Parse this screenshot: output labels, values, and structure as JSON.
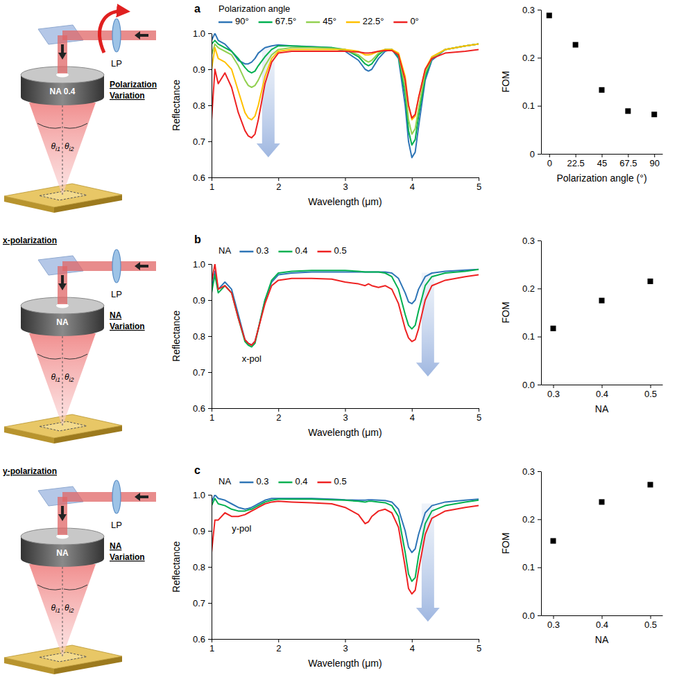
{
  "chart_data": [
    {
      "type": "line",
      "title": "a",
      "legend_title": "Polarization angle",
      "legend": "top",
      "grid": false,
      "x_label": "Wavelength (μm)",
      "y_label": "Reflectance",
      "xlim": [
        1,
        5
      ],
      "xticks": [
        1,
        2,
        3,
        4,
        5
      ],
      "ylim": [
        0.6,
        1
      ],
      "yticks": [
        0.6,
        0.7,
        0.8,
        0.9,
        {
          "value": 1,
          "label": "1.0"
        }
      ],
      "x": [
        1.0,
        1.05,
        1.1,
        1.2,
        1.3,
        1.4,
        1.5,
        1.55,
        1.6,
        1.65,
        1.7,
        1.8,
        1.9,
        2.0,
        2.2,
        2.5,
        2.8,
        3.0,
        3.2,
        3.3,
        3.35,
        3.4,
        3.5,
        3.6,
        3.7,
        3.8,
        3.9,
        3.95,
        4.0,
        4.05,
        4.1,
        4.2,
        4.3,
        4.5,
        4.8,
        5.0
      ],
      "series": [
        {
          "name": "90°",
          "color": "#2e75b6",
          "values": [
            0.98,
            1.0,
            0.98,
            0.97,
            0.95,
            0.925,
            0.915,
            0.915,
            0.92,
            0.93,
            0.945,
            0.96,
            0.965,
            0.968,
            0.965,
            0.963,
            0.96,
            0.95,
            0.925,
            0.9,
            0.895,
            0.9,
            0.93,
            0.95,
            0.955,
            0.93,
            0.8,
            0.7,
            0.655,
            0.67,
            0.74,
            0.87,
            0.925,
            0.955,
            0.965,
            0.97
          ]
        },
        {
          "name": "67.5°",
          "color": "#00b050",
          "values": [
            0.97,
            0.98,
            0.97,
            0.96,
            0.95,
            0.93,
            0.905,
            0.895,
            0.89,
            0.895,
            0.91,
            0.935,
            0.955,
            0.965,
            0.965,
            0.962,
            0.96,
            0.955,
            0.935,
            0.915,
            0.91,
            0.915,
            0.94,
            0.955,
            0.955,
            0.935,
            0.83,
            0.73,
            0.69,
            0.705,
            0.77,
            0.88,
            0.93,
            0.955,
            0.965,
            0.97
          ]
        },
        {
          "name": "45°",
          "color": "#92d050",
          "values": [
            0.94,
            0.97,
            0.96,
            0.95,
            0.94,
            0.91,
            0.87,
            0.855,
            0.85,
            0.855,
            0.87,
            0.91,
            0.94,
            0.955,
            0.96,
            0.96,
            0.958,
            0.955,
            0.94,
            0.925,
            0.92,
            0.925,
            0.945,
            0.955,
            0.955,
            0.94,
            0.85,
            0.76,
            0.72,
            0.735,
            0.79,
            0.89,
            0.93,
            0.955,
            0.965,
            0.97
          ]
        },
        {
          "name": "22.5°",
          "color": "#ffc000",
          "values": [
            0.9,
            0.96,
            0.93,
            0.92,
            0.9,
            0.84,
            0.78,
            0.765,
            0.76,
            0.77,
            0.8,
            0.88,
            0.93,
            0.95,
            0.955,
            0.955,
            0.955,
            0.955,
            0.95,
            0.94,
            0.94,
            0.942,
            0.95,
            0.955,
            0.955,
            0.945,
            0.88,
            0.8,
            0.76,
            0.77,
            0.82,
            0.9,
            0.935,
            0.955,
            0.965,
            0.97
          ]
        },
        {
          "name": "0°",
          "color": "#ee2222",
          "values": [
            0.76,
            0.9,
            0.86,
            0.89,
            0.85,
            0.78,
            0.73,
            0.715,
            0.71,
            0.72,
            0.76,
            0.86,
            0.92,
            0.945,
            0.95,
            0.95,
            0.95,
            0.95,
            0.948,
            0.945,
            0.945,
            0.946,
            0.95,
            0.952,
            0.952,
            0.94,
            0.87,
            0.8,
            0.765,
            0.775,
            0.82,
            0.9,
            0.93,
            0.945,
            0.95,
            0.955
          ]
        }
      ]
    },
    {
      "type": "scatter",
      "grid": false,
      "marker": "square",
      "color": "#000000",
      "x_label": "Polarization angle (°)",
      "y_label": "FOM",
      "xlim": [
        -7,
        97
      ],
      "xticks": [
        0,
        22.5,
        45,
        67.5,
        90
      ],
      "ylim": [
        0,
        0.3
      ],
      "yticks": [
        0,
        0.1,
        0.2,
        0.3
      ],
      "x": [
        0,
        22.5,
        45,
        67.5,
        90
      ],
      "values": [
        0.288,
        0.227,
        0.133,
        0.089,
        0.082
      ]
    },
    {
      "type": "line",
      "title": "b",
      "legend_title": "NA",
      "legend": "top",
      "grid": false,
      "x_label": "Wavelength (μm)",
      "y_label": "Reflectance",
      "xlim": [
        1,
        5
      ],
      "xticks": [
        1,
        2,
        3,
        4,
        5
      ],
      "ylim": [
        0.6,
        1
      ],
      "yticks": [
        0.6,
        0.7,
        0.8,
        0.9,
        {
          "value": 1,
          "label": "1.0"
        }
      ],
      "annotations": [
        {
          "text": "x-pol",
          "x": 1.6,
          "y": 0.735
        }
      ],
      "x": [
        1.0,
        1.05,
        1.1,
        1.2,
        1.3,
        1.4,
        1.5,
        1.55,
        1.6,
        1.65,
        1.7,
        1.8,
        1.9,
        2.0,
        2.2,
        2.5,
        2.8,
        3.0,
        3.2,
        3.3,
        3.35,
        3.4,
        3.5,
        3.6,
        3.7,
        3.8,
        3.9,
        3.95,
        4.0,
        4.05,
        4.1,
        4.2,
        4.3,
        4.5,
        4.8,
        5.0
      ],
      "series": [
        {
          "name": "0.3",
          "color": "#2e75b6",
          "values": [
            0.93,
            0.98,
            0.93,
            0.95,
            0.93,
            0.86,
            0.79,
            0.78,
            0.775,
            0.785,
            0.82,
            0.9,
            0.95,
            0.97,
            0.975,
            0.978,
            0.978,
            0.978,
            0.978,
            0.978,
            0.978,
            0.978,
            0.978,
            0.978,
            0.975,
            0.96,
            0.92,
            0.895,
            0.89,
            0.9,
            0.93,
            0.965,
            0.975,
            0.98,
            0.983,
            0.985
          ]
        },
        {
          "name": "0.4",
          "color": "#00b050",
          "values": [
            0.92,
            0.97,
            0.92,
            0.94,
            0.92,
            0.85,
            0.785,
            0.775,
            0.77,
            0.78,
            0.82,
            0.9,
            0.955,
            0.975,
            0.98,
            0.982,
            0.982,
            0.982,
            0.98,
            0.978,
            0.978,
            0.978,
            0.978,
            0.975,
            0.965,
            0.93,
            0.86,
            0.83,
            0.82,
            0.83,
            0.87,
            0.94,
            0.965,
            0.975,
            0.98,
            0.985
          ]
        },
        {
          "name": "0.5",
          "color": "#ee2222",
          "values": [
            0.95,
            1.0,
            0.93,
            0.94,
            0.92,
            0.85,
            0.79,
            0.78,
            0.775,
            0.785,
            0.82,
            0.89,
            0.94,
            0.955,
            0.96,
            0.96,
            0.958,
            0.95,
            0.945,
            0.94,
            0.945,
            0.94,
            0.935,
            0.94,
            0.93,
            0.89,
            0.82,
            0.795,
            0.785,
            0.79,
            0.82,
            0.9,
            0.94,
            0.955,
            0.965,
            0.97
          ]
        }
      ]
    },
    {
      "type": "scatter",
      "grid": false,
      "marker": "square",
      "color": "#000000",
      "x_label": "NA",
      "y_label": "FOM",
      "xlim": [
        0.275,
        0.525
      ],
      "xticks": [
        0.3,
        0.4,
        0.5
      ],
      "ylim": [
        0,
        0.3
      ],
      "yticks": [
        {
          "value": 0,
          "label": "0.0"
        },
        0.1,
        0.2,
        0.3
      ],
      "x": [
        0.3,
        0.4,
        0.5
      ],
      "values": [
        0.117,
        0.175,
        0.215
      ]
    },
    {
      "type": "line",
      "title": "c",
      "legend_title": "NA",
      "legend": "top",
      "grid": false,
      "x_label": "Wavelength (μm)",
      "y_label": "Reflectance",
      "xlim": [
        1,
        5
      ],
      "xticks": [
        1,
        2,
        3,
        4,
        5
      ],
      "ylim": [
        0.6,
        1
      ],
      "yticks": [
        0.6,
        0.7,
        0.8,
        0.9,
        {
          "value": 1,
          "label": "1.0"
        }
      ],
      "annotations": [
        {
          "text": "y-pol",
          "x": 1.45,
          "y": 0.905
        }
      ],
      "x": [
        1.0,
        1.05,
        1.1,
        1.2,
        1.3,
        1.4,
        1.5,
        1.55,
        1.6,
        1.65,
        1.7,
        1.8,
        1.9,
        2.0,
        2.2,
        2.5,
        2.8,
        3.0,
        3.2,
        3.3,
        3.35,
        3.4,
        3.5,
        3.6,
        3.7,
        3.8,
        3.9,
        3.95,
        4.0,
        4.05,
        4.1,
        4.2,
        4.3,
        4.5,
        4.8,
        5.0
      ],
      "series": [
        {
          "name": "0.3",
          "color": "#2e75b6",
          "values": [
            0.98,
            1.0,
            0.99,
            0.985,
            0.975,
            0.965,
            0.96,
            0.962,
            0.965,
            0.97,
            0.975,
            0.985,
            0.99,
            0.99,
            0.99,
            0.99,
            0.988,
            0.986,
            0.985,
            0.985,
            0.986,
            0.986,
            0.985,
            0.984,
            0.98,
            0.96,
            0.9,
            0.855,
            0.84,
            0.85,
            0.89,
            0.95,
            0.97,
            0.98,
            0.985,
            0.988
          ]
        },
        {
          "name": "0.4",
          "color": "#00b050",
          "values": [
            0.97,
            0.99,
            0.975,
            0.97,
            0.96,
            0.955,
            0.955,
            0.958,
            0.96,
            0.965,
            0.97,
            0.98,
            0.985,
            0.988,
            0.988,
            0.988,
            0.986,
            0.985,
            0.982,
            0.98,
            0.982,
            0.982,
            0.98,
            0.978,
            0.97,
            0.94,
            0.84,
            0.78,
            0.76,
            0.77,
            0.83,
            0.92,
            0.955,
            0.97,
            0.98,
            0.985
          ]
        },
        {
          "name": "0.5",
          "color": "#ee2222",
          "values": [
            0.84,
            0.93,
            0.93,
            0.95,
            0.94,
            0.94,
            0.945,
            0.95,
            0.955,
            0.96,
            0.965,
            0.975,
            0.98,
            0.982,
            0.98,
            0.978,
            0.975,
            0.965,
            0.945,
            0.92,
            0.925,
            0.94,
            0.955,
            0.96,
            0.95,
            0.91,
            0.8,
            0.74,
            0.725,
            0.735,
            0.79,
            0.89,
            0.935,
            0.955,
            0.965,
            0.97
          ]
        }
      ]
    },
    {
      "type": "scatter",
      "grid": false,
      "marker": "square",
      "color": "#000000",
      "x_label": "NA",
      "y_label": "FOM",
      "xlim": [
        0.275,
        0.525
      ],
      "xticks": [
        0.3,
        0.4,
        0.5
      ],
      "ylim": [
        0,
        0.3
      ],
      "yticks": [
        {
          "value": 0,
          "label": "0.0"
        },
        0.1,
        0.2,
        0.3
      ],
      "x": [
        0.3,
        0.4,
        0.5
      ],
      "values": [
        0.155,
        0.236,
        0.272
      ]
    }
  ],
  "schematics": [
    {
      "lp": "LP",
      "objective": "NA 0.4",
      "caption": "Polarization Variation",
      "theta": [
        "θi1",
        "θi2"
      ],
      "polarizer_rotation": true
    },
    {
      "heading": "x-polarization",
      "lp": "LP",
      "objective": "NA",
      "caption": "NA Variation",
      "theta": [
        "θi1",
        "θi2"
      ],
      "polarizer_rotation": false
    },
    {
      "heading": "y-polarization",
      "lp": "LP",
      "objective": "NA",
      "caption": "NA Variation",
      "theta": [
        "θi1",
        "θi2"
      ],
      "polarizer_rotation": false
    }
  ]
}
